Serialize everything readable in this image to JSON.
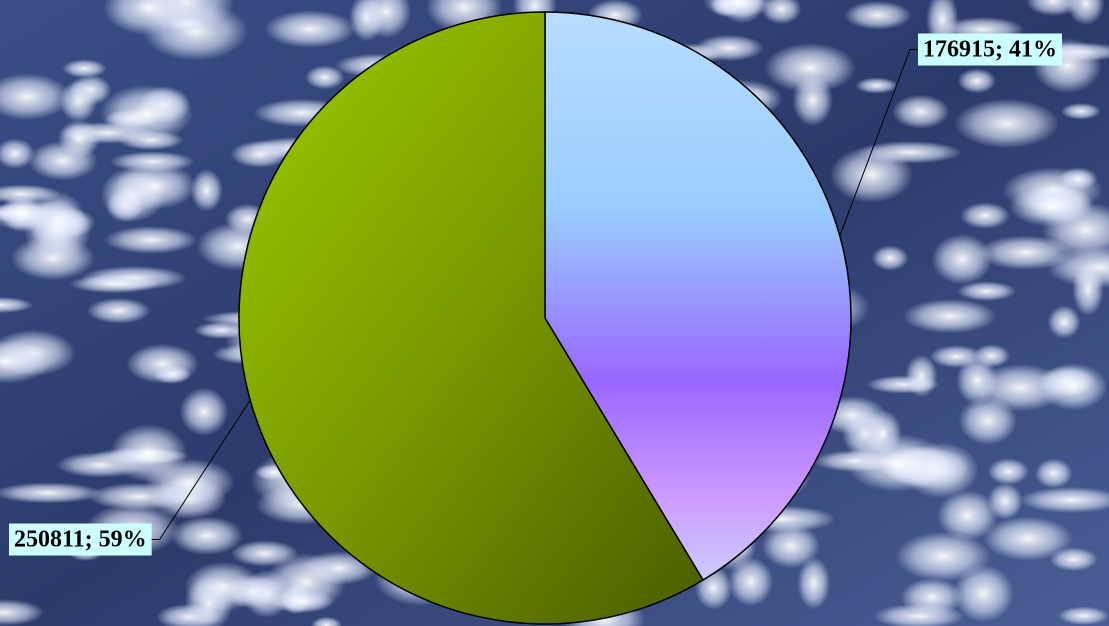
{
  "chart_data": {
    "type": "pie",
    "categories": [
      null,
      null
    ],
    "values": [
      176915,
      250811
    ],
    "value_labels": [
      "176915; 41%",
      "250811; 59%"
    ],
    "colors": [
      "#9966ff",
      "#7a9900"
    ]
  }
}
